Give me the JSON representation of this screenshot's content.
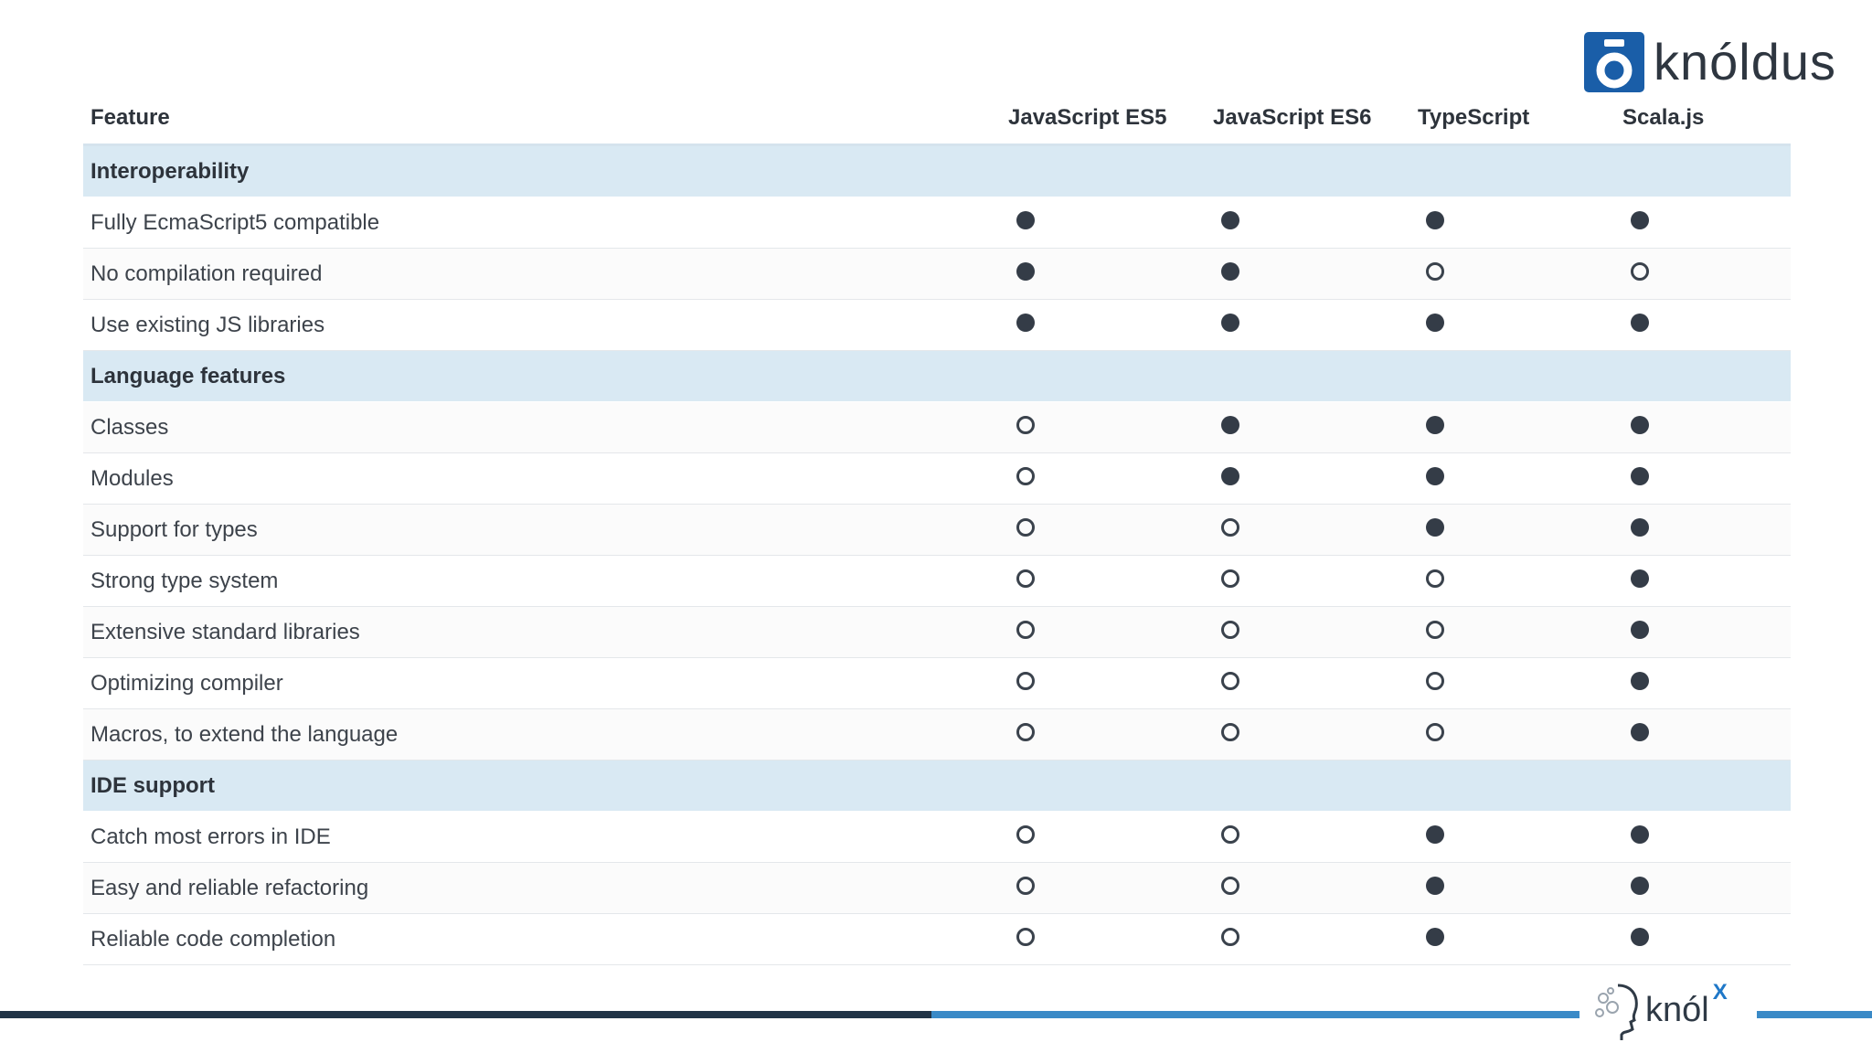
{
  "brand": {
    "name": "knóldus",
    "footer_name": "knól",
    "footer_sup": "X",
    "color": "#1a5ea8"
  },
  "table": {
    "headers": [
      "Feature",
      "JavaScript ES5",
      "JavaScript ES6",
      "TypeScript",
      "Scala.js"
    ],
    "sections": [
      {
        "title": "Interoperability",
        "rows": [
          {
            "feature": "Fully EcmaScript5 compatible",
            "support": [
              true,
              true,
              true,
              true
            ]
          },
          {
            "feature": "No compilation required",
            "support": [
              true,
              true,
              false,
              false
            ]
          },
          {
            "feature": "Use existing JS libraries",
            "support": [
              true,
              true,
              true,
              true
            ]
          }
        ]
      },
      {
        "title": "Language features",
        "rows": [
          {
            "feature": "Classes",
            "support": [
              false,
              true,
              true,
              true
            ]
          },
          {
            "feature": "Modules",
            "support": [
              false,
              true,
              true,
              true
            ]
          },
          {
            "feature": "Support for types",
            "support": [
              false,
              false,
              true,
              true
            ]
          },
          {
            "feature": "Strong type system",
            "support": [
              false,
              false,
              false,
              true
            ]
          },
          {
            "feature": "Extensive standard libraries",
            "support": [
              false,
              false,
              false,
              true
            ]
          },
          {
            "feature": "Optimizing compiler",
            "support": [
              false,
              false,
              false,
              true
            ]
          },
          {
            "feature": "Macros, to extend the language",
            "support": [
              false,
              false,
              false,
              true
            ]
          }
        ]
      },
      {
        "title": "IDE support",
        "rows": [
          {
            "feature": "Catch most errors in IDE",
            "support": [
              false,
              false,
              true,
              true
            ]
          },
          {
            "feature": "Easy and reliable refactoring",
            "support": [
              false,
              false,
              true,
              true
            ]
          },
          {
            "feature": "Reliable code completion",
            "support": [
              false,
              false,
              true,
              true
            ]
          }
        ]
      }
    ]
  }
}
